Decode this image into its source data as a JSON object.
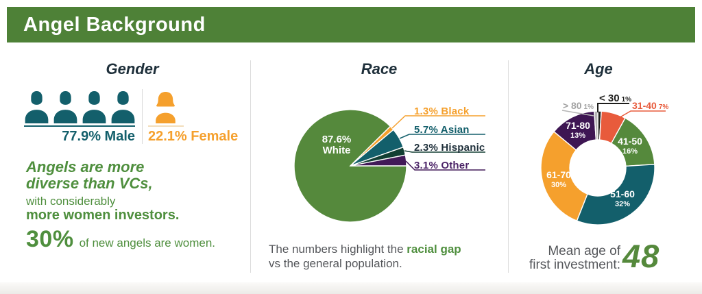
{
  "header": {
    "title": "Angel Background"
  },
  "palette": {
    "green_header": "#4e8137",
    "green": "#55893c",
    "green_text": "#4f8f3e",
    "teal": "#135f6b",
    "orange": "#f5a02d",
    "vermilion": "#e85b3c",
    "purple": "#421a58",
    "dark_green": "#123f33",
    "black": "#1d1d1b",
    "gray": "#b5b5b5",
    "gray_label": "#a3a3a3",
    "navy": "#1e2f3a",
    "text_gray": "#54565a"
  },
  "gender": {
    "title": "Gender",
    "male_label": "77.9% Male",
    "female_label": "22.1% Female",
    "male_icon_count": 4,
    "female_icon_count": 1,
    "headline_line1": "Angels are more",
    "headline_line2": "diverse than VCs,",
    "sub_line": "with considerably",
    "bold_line": "more women investors.",
    "stat_value": "30%",
    "stat_text": "of new angels are women."
  },
  "race": {
    "title": "Race",
    "caption_prefix": "The numbers highlight the ",
    "caption_bold": "racial gap",
    "caption_line2": "vs the general population."
  },
  "age": {
    "title": "Age",
    "mean_label_line1": "Mean age of",
    "mean_label_line2": "first investment:",
    "mean_value": "48"
  },
  "chart_data": [
    {
      "type": "pie",
      "title": "Race",
      "unit": "%",
      "start_offset_deg": 90,
      "legend_position": "right",
      "slices": [
        {
          "label": "White",
          "value": 87.6,
          "display": "87.6% White",
          "display_lines": [
            "87.6%",
            "White"
          ],
          "color": "#55893c",
          "label_position": "inside"
        },
        {
          "label": "Black",
          "value": 1.3,
          "display": "1.3% Black",
          "color": "#f5a02d",
          "label_position": "outside"
        },
        {
          "label": "Asian",
          "value": 5.7,
          "display": "5.7% Asian",
          "color": "#135f6b",
          "label_position": "outside"
        },
        {
          "label": "Hispanic",
          "value": 2.3,
          "display": "2.3% Hispanic",
          "color": "#123f33",
          "label_position": "outside"
        },
        {
          "label": "Other",
          "value": 3.1,
          "display": "3.1% Other",
          "color": "#421a58",
          "label_position": "outside"
        }
      ]
    },
    {
      "type": "donut",
      "title": "Age",
      "unit": "%",
      "start_offset_deg": 0,
      "slices": [
        {
          "label": "< 30",
          "value": 1,
          "pct_label": "1%",
          "color": "#1d1d1b",
          "label_position": "outside"
        },
        {
          "label": "31-40",
          "value": 7,
          "pct_label": "7%",
          "color": "#e85b3c",
          "label_position": "outside"
        },
        {
          "label": "41-50",
          "value": 16,
          "pct_label": "16%",
          "color": "#55893c",
          "label_position": "inside"
        },
        {
          "label": "51-60",
          "value": 32,
          "pct_label": "32%",
          "color": "#135f6b",
          "label_position": "inside"
        },
        {
          "label": "61-70",
          "value": 30,
          "pct_label": "30%",
          "color": "#f5a02d",
          "label_position": "inside"
        },
        {
          "label": "71-80",
          "value": 13,
          "pct_label": "13%",
          "color": "#3e1653",
          "label_position": "inside"
        },
        {
          "label": "> 80",
          "value": 1,
          "pct_label": "1%",
          "color": "#b5b5b5",
          "label_position": "outside"
        }
      ]
    }
  ]
}
